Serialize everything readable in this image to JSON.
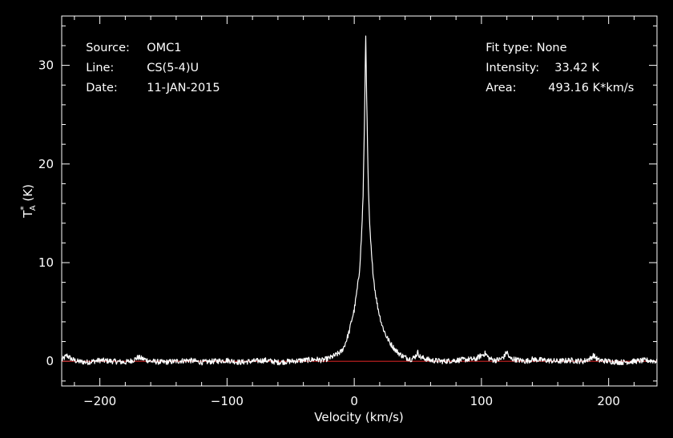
{
  "header": {
    "source_label": "Source:",
    "source_value": "OMC1",
    "line_label": "Line:",
    "line_value": "CS(5-4)U",
    "date_label": "Date:",
    "date_value": "11-JAN-2015",
    "fit_label": "Fit type:",
    "fit_value": "None",
    "intensity_label": "Intensity:",
    "intensity_value": "33.42 K",
    "area_label": "Area:",
    "area_value": "493.16 K*km/s"
  },
  "chart_data": {
    "type": "line",
    "xlabel": "Velocity (km/s)",
    "ylabel": "T*A (K)",
    "xlim": [
      -230,
      238
    ],
    "ylim": [
      -2.5,
      35
    ],
    "x_ticks": [
      -200,
      -100,
      0,
      100,
      200
    ],
    "x_tick_labels": [
      "−200",
      "−100",
      "0",
      "100",
      "200"
    ],
    "y_ticks": [
      0,
      10,
      20,
      30
    ],
    "y_tick_labels": [
      "0",
      "10",
      "20",
      "30"
    ],
    "grid": false,
    "baseline": 0,
    "colors": {
      "background": "#000000",
      "axes": "#ffffff",
      "spectrum": "#ffffff",
      "baseline": "#cc2222"
    },
    "series": [
      {
        "x": [
          -230,
          -226,
          -222,
          -218,
          -210,
          -200,
          -190,
          -180,
          -174,
          -170,
          -160,
          -150,
          -140,
          -130,
          -120,
          -110,
          -100,
          -90,
          -80,
          -70,
          -60,
          -50,
          -40,
          -30,
          -25,
          -20,
          -15,
          -10,
          -8,
          -6,
          -4,
          -2,
          0,
          2,
          4,
          5,
          6,
          7,
          8,
          9,
          10,
          11,
          12,
          13,
          14,
          16,
          18,
          20,
          22,
          25,
          28,
          32,
          36,
          40,
          45,
          48,
          50,
          52,
          55,
          60,
          70,
          80,
          90,
          95,
          100,
          103,
          106,
          110,
          115,
          118,
          120,
          122,
          126,
          130,
          135,
          140,
          150,
          160,
          170,
          180,
          186,
          188,
          192,
          200,
          210,
          220,
          230,
          238
        ],
        "y": [
          0.1,
          0.6,
          0.2,
          0.0,
          -0.1,
          0.1,
          0.0,
          -0.1,
          0.1,
          0.4,
          0.0,
          -0.1,
          0.0,
          0.1,
          -0.1,
          0.0,
          0.1,
          -0.1,
          0.0,
          0.1,
          -0.1,
          0.0,
          0.1,
          0.2,
          0.1,
          0.3,
          0.6,
          1.0,
          1.5,
          2.2,
          3.0,
          4.2,
          5.2,
          7.0,
          9.0,
          11.0,
          13.5,
          17.0,
          24.0,
          33.4,
          25.0,
          18.0,
          14.0,
          12.0,
          10.0,
          7.5,
          5.8,
          4.6,
          3.6,
          2.6,
          1.9,
          1.2,
          0.7,
          0.4,
          0.2,
          0.5,
          0.9,
          0.4,
          0.3,
          0.1,
          0.0,
          0.1,
          0.2,
          0.2,
          0.6,
          0.8,
          0.3,
          0.1,
          0.2,
          0.5,
          1.0,
          0.3,
          0.2,
          0.1,
          0.0,
          0.2,
          0.1,
          0.0,
          0.1,
          0.0,
          0.3,
          0.6,
          0.1,
          0.0,
          -0.1,
          0.0,
          0.1,
          0.0
        ]
      }
    ]
  }
}
